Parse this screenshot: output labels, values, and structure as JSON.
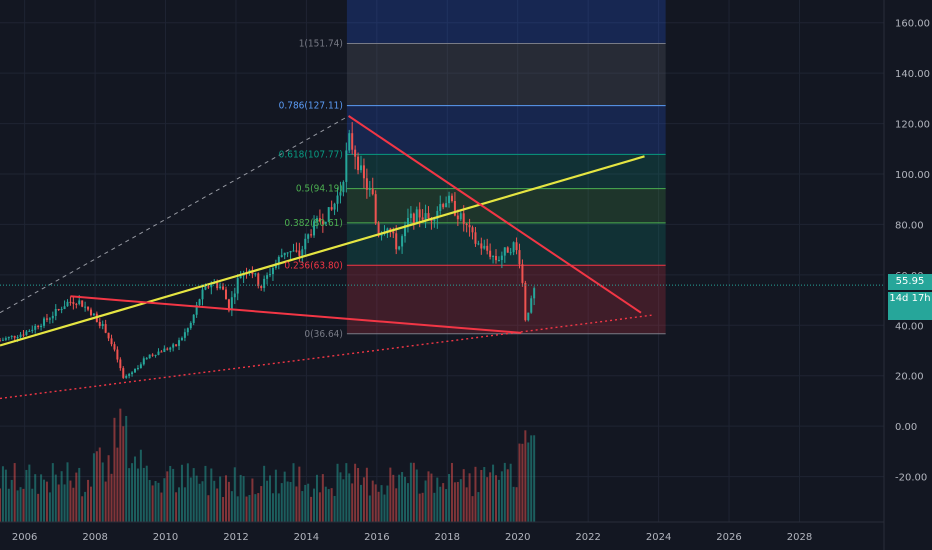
{
  "colors": {
    "background": "#131722",
    "grid": "#1f2433",
    "up": "#26a69a",
    "down": "#ef5350",
    "trend_yellow": "#e5e542",
    "trend_red": "#f23645",
    "axis_text": "#b2b5be"
  },
  "price_badge": "55.95",
  "countdown_badge": "14d 17h",
  "chart_data": {
    "type": "candlestick",
    "interval": "monthly",
    "x_axis": {
      "tick_labels": [
        "2006",
        "2008",
        "2010",
        "2012",
        "2014",
        "2016",
        "2018",
        "2020",
        "2022",
        "2024",
        "2026",
        "2028"
      ],
      "range": [
        2005.3,
        2030.4
      ]
    },
    "y_axis": {
      "tick_labels": [
        "-20.00",
        "0.00",
        "20.00",
        "40.00",
        "60.00",
        "80.00",
        "100.00",
        "120.00",
        "140.00",
        "160.00"
      ],
      "range": [
        -38,
        169
      ],
      "position": "right"
    },
    "grid": true,
    "last_price": 55.95,
    "fibonacci": {
      "x_start": 2015.15,
      "x_end": 2024.2,
      "levels": [
        {
          "label": "1(151.74)",
          "ratio": 1,
          "price": 151.74
        },
        {
          "label": "0.786(127.11)",
          "ratio": 0.786,
          "price": 127.11
        },
        {
          "label": "0.618(107.77)",
          "ratio": 0.618,
          "price": 107.77
        },
        {
          "label": "0.5(94.19)",
          "ratio": 0.5,
          "price": 94.19
        },
        {
          "label": "0.382(80.61)",
          "ratio": 0.382,
          "price": 80.61
        },
        {
          "label": "0.236(63.80)",
          "ratio": 0.236,
          "price": 63.8
        },
        {
          "label": "0(36.64)",
          "ratio": 0,
          "price": 36.64
        }
      ]
    },
    "trendlines": [
      {
        "name": "",
        "style": "solid-yellow",
        "from": [
          2005.3,
          32
        ],
        "to": [
          2023.6,
          107
        ]
      },
      {
        "name": "",
        "style": "solid-red",
        "from": [
          2007.3,
          51.5
        ],
        "to": [
          2020.1,
          37
        ]
      },
      {
        "name": "",
        "style": "solid-red",
        "from": [
          2015.2,
          123
        ],
        "to": [
          2023.5,
          45
        ]
      },
      {
        "name": "",
        "style": "dotted-red",
        "from": [
          2005.3,
          11
        ],
        "to": [
          2023.8,
          44
        ]
      },
      {
        "name": "",
        "style": "dashed-gray",
        "from": [
          2005.3,
          45
        ],
        "to": [
          2015.2,
          123
        ]
      }
    ],
    "price_path": [
      [
        2005.3,
        34
      ],
      [
        2006.0,
        37
      ],
      [
        2006.6,
        42
      ],
      [
        2007.2,
        49
      ],
      [
        2007.5,
        50
      ],
      [
        2007.9,
        45
      ],
      [
        2008.3,
        38
      ],
      [
        2008.6,
        28
      ],
      [
        2008.8,
        19
      ],
      [
        2009.1,
        22
      ],
      [
        2009.5,
        28
      ],
      [
        2009.9,
        30
      ],
      [
        2010.3,
        32
      ],
      [
        2010.7,
        40
      ],
      [
        2011.0,
        52
      ],
      [
        2011.3,
        57
      ],
      [
        2011.6,
        55
      ],
      [
        2011.8,
        47
      ],
      [
        2012.1,
        60
      ],
      [
        2012.4,
        63
      ],
      [
        2012.7,
        55
      ],
      [
        2013.0,
        62
      ],
      [
        2013.4,
        70
      ],
      [
        2013.8,
        68
      ],
      [
        2014.1,
        77
      ],
      [
        2014.4,
        82
      ],
      [
        2014.7,
        85
      ],
      [
        2015.0,
        95
      ],
      [
        2015.2,
        114
      ],
      [
        2015.4,
        108
      ],
      [
        2015.6,
        98
      ],
      [
        2015.9,
        90
      ],
      [
        2016.0,
        76
      ],
      [
        2016.3,
        80
      ],
      [
        2016.6,
        70
      ],
      [
        2016.9,
        82
      ],
      [
        2017.2,
        84
      ],
      [
        2017.5,
        82
      ],
      [
        2017.8,
        88
      ],
      [
        2018.0,
        90
      ],
      [
        2018.2,
        86
      ],
      [
        2018.5,
        80
      ],
      [
        2018.8,
        73
      ],
      [
        2019.1,
        70
      ],
      [
        2019.4,
        66
      ],
      [
        2019.7,
        70
      ],
      [
        2019.9,
        72
      ],
      [
        2020.1,
        64
      ],
      [
        2020.2,
        42
      ],
      [
        2020.4,
        50
      ],
      [
        2020.5,
        56
      ]
    ],
    "volume_overlay": true
  }
}
